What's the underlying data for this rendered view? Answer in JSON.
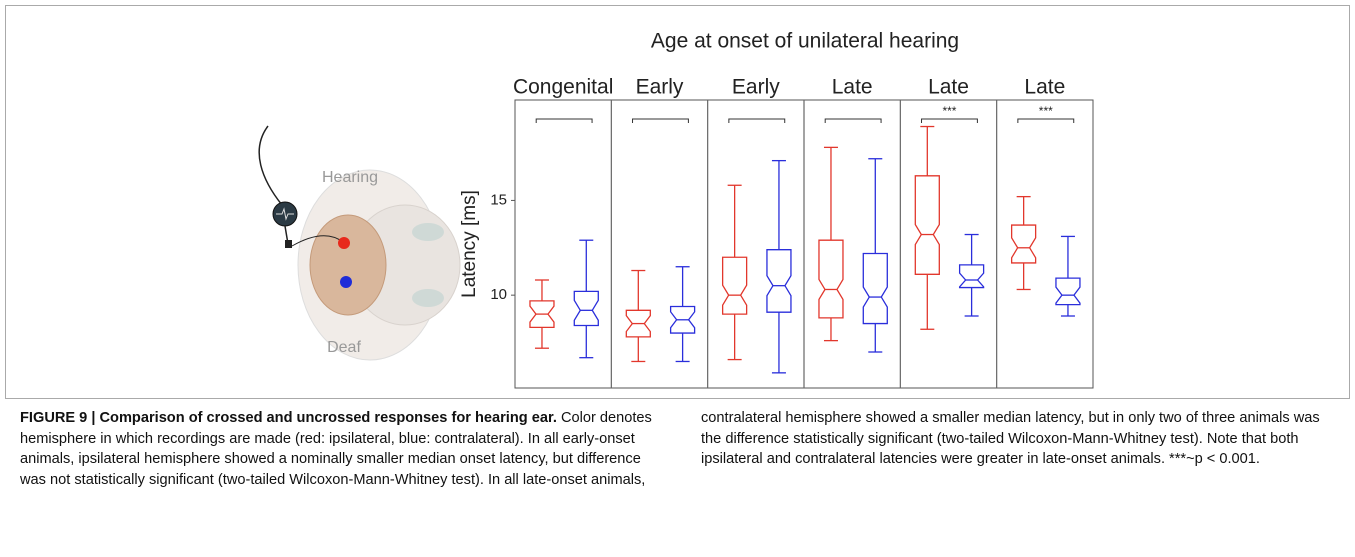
{
  "chart_data": {
    "type": "box",
    "title": "Age at onset of unilateral hearing",
    "ylabel": "Latency [ms]",
    "ylim": [
      5.1,
      20.3
    ],
    "yticks": [
      10,
      15
    ],
    "colors": [
      "#e2372c",
      "#2a2edb"
    ],
    "panels": [
      {
        "label": "Congenital",
        "boxes": [
          {
            "low": 7.2,
            "q1": 8.3,
            "median": 9.0,
            "q3": 9.7,
            "high": 10.8
          },
          {
            "low": 6.7,
            "q1": 8.4,
            "median": 9.2,
            "q3": 10.2,
            "high": 12.9
          }
        ]
      },
      {
        "label": "Early",
        "boxes": [
          {
            "low": 6.5,
            "q1": 7.8,
            "median": 8.5,
            "q3": 9.2,
            "high": 11.3
          },
          {
            "low": 6.5,
            "q1": 8.0,
            "median": 8.7,
            "q3": 9.4,
            "high": 11.5
          }
        ]
      },
      {
        "label": "Early",
        "boxes": [
          {
            "low": 6.6,
            "q1": 9.0,
            "median": 10.0,
            "q3": 12.0,
            "high": 15.8
          },
          {
            "low": 5.9,
            "q1": 9.1,
            "median": 10.5,
            "q3": 12.4,
            "high": 17.1
          }
        ]
      },
      {
        "label": "Late",
        "boxes": [
          {
            "low": 7.6,
            "q1": 8.8,
            "median": 10.3,
            "q3": 12.9,
            "high": 17.8
          },
          {
            "low": 7.0,
            "q1": 8.5,
            "median": 9.9,
            "q3": 12.2,
            "high": 17.2
          }
        ]
      },
      {
        "label": "Late",
        "significance": "***",
        "boxes": [
          {
            "low": 8.2,
            "q1": 11.1,
            "median": 13.2,
            "q3": 16.3,
            "high": 18.9
          },
          {
            "low": 8.9,
            "q1": 10.4,
            "median": 10.8,
            "q3": 11.6,
            "high": 13.2
          }
        ]
      },
      {
        "label": "Late",
        "significance": "***",
        "boxes": [
          {
            "low": 10.3,
            "q1": 11.7,
            "median": 12.5,
            "q3": 13.7,
            "high": 15.2
          },
          {
            "low": 8.9,
            "q1": 9.5,
            "median": 10.0,
            "q3": 10.9,
            "high": 13.1
          }
        ]
      }
    ]
  },
  "illustration": {
    "top_label": "Hearing",
    "bottom_label": "Deaf"
  },
  "caption": {
    "heading": "FIGURE 9 | Comparison of crossed and uncrossed responses for hearing ear.",
    "body": "Color denotes hemisphere in which recordings are made (red: ipsilateral, blue: contralateral). In all early-onset animals, ipsilateral hemisphere showed a nominally smaller median onset latency, but difference was not statistically significant (two-tailed Wilcoxon-Mann-Whitney test). In all late-onset animals, contralateral hemisphere showed a smaller median latency, but in only two of three animals was the difference statistically significant (two-tailed Wilcoxon-Mann-Whitney test). Note that both ipsilateral and contralateral latencies were greater in late-onset animals. ***~p < 0.001."
  }
}
